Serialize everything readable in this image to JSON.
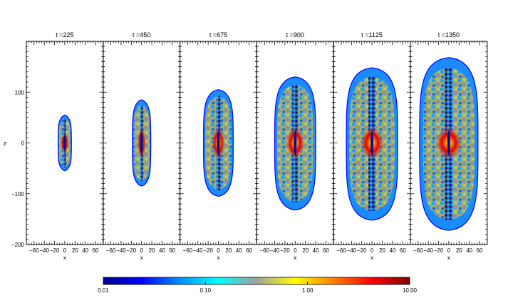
{
  "chart_data": {
    "type": "heatmap",
    "panels": [
      {
        "time_label": "t =225",
        "extent": {
          "z_top": 55,
          "z_bottom": -55,
          "half_width": 13
        }
      },
      {
        "time_label": "t =450",
        "extent": {
          "z_top": 85,
          "z_bottom": -85,
          "half_width": 18
        }
      },
      {
        "time_label": "t =675",
        "extent": {
          "z_top": 105,
          "z_bottom": -105,
          "half_width": 29
        }
      },
      {
        "time_label": "t =900",
        "extent": {
          "z_top": 130,
          "z_bottom": -132,
          "half_width": 40
        }
      },
      {
        "time_label": "t =1125",
        "extent": {
          "z_top": 148,
          "z_bottom": -152,
          "half_width": 50
        }
      },
      {
        "time_label": "t =1350",
        "extent": {
          "z_top": 168,
          "z_bottom": -172,
          "half_width": 57
        }
      }
    ],
    "xlabel": "x",
    "ylabel": "z",
    "xlim": [
      -75,
      75
    ],
    "ylim": [
      -200,
      200
    ],
    "x_ticks": [
      "−60",
      "−40",
      "−20",
      "0",
      "20",
      "40",
      "60"
    ],
    "x_tick_values": [
      -60,
      -40,
      -20,
      0,
      20,
      40,
      60
    ],
    "y_ticks": [
      "100",
      "0",
      "−100",
      "−200"
    ],
    "y_tick_values": [
      100,
      0,
      -100,
      -200
    ],
    "colorbar": {
      "scale": "log",
      "range": [
        0.01,
        10
      ],
      "tick_labels": [
        "0.01",
        "0.10",
        "1.00",
        "10.00"
      ],
      "tick_values": [
        0.01,
        0.1,
        1,
        10
      ],
      "colors": [
        "#00008f",
        "#0000ff",
        "#0090ff",
        "#00ffff",
        "#a0a0a0",
        "#ffff00",
        "#ff8000",
        "#ff0000",
        "#800000"
      ]
    }
  }
}
